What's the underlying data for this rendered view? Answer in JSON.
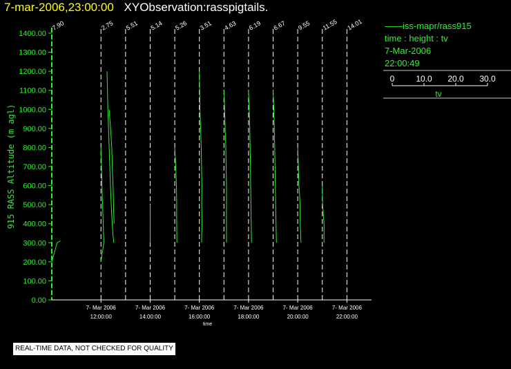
{
  "header": {
    "date_time": "7-mar-2006,23:00:00",
    "observation": "XYObservation:rasspigtails."
  },
  "legend": {
    "series_name": "iss-mapr/rass915",
    "subtitle": "time : height : tv",
    "date": "7-Mar-2006",
    "time": "22:00:49",
    "scale_ticks": [
      "0",
      "10.0",
      "20.0",
      "30.0"
    ],
    "scale_label": "tv"
  },
  "footer": {
    "quality_note": "REAL-TIME DATA, NOT CHECKED FOR QUALITY"
  },
  "colors": {
    "background": "#000000",
    "series": "#33ee33",
    "axis": "#33ee33",
    "title_date": "#ffff00",
    "title_text": "#ffffff",
    "ref_lines": "#ffffff"
  },
  "chart_data": {
    "type": "line",
    "title": "7-mar-2006,23:00:00 XYObservation:rasspigtails.",
    "xlabel": "time",
    "ylabel": "915 RASS Altitude (m agl)",
    "x_ticks": [
      {
        "time": "12:00:00",
        "date": "7- Mar 2006"
      },
      {
        "time": "14:00:00",
        "date": "7- Mar 2006"
      },
      {
        "time": "16:00:00",
        "date": "7- Mar 2006"
      },
      {
        "time": "18:00:00",
        "date": "7- Mar 2006"
      },
      {
        "time": "20:00:00",
        "date": "7- Mar 2006"
      },
      {
        "time": "22:00:00",
        "date": "7- Mar 2006"
      }
    ],
    "xlim": [
      "2006-03-07 10:00",
      "2006-03-07 23:00"
    ],
    "ylim": [
      0,
      1400
    ],
    "y_ticks": [
      "0.00",
      "100.00",
      "200.00",
      "300.00",
      "400.00",
      "500.00",
      "600.00",
      "700.00",
      "800.00",
      "900.00",
      "1000.00",
      "1100.00",
      "1200.00",
      "1300.00",
      "1400.00"
    ],
    "profile_scale": {
      "value_per_hour": 30,
      "units": "tv"
    },
    "reference_lines": [
      {
        "time": "2006-03-07 10:00",
        "label": "7.90"
      },
      {
        "time": "2006-03-07 12:00",
        "label": "2.75"
      },
      {
        "time": "2006-03-07 13:00",
        "label": "5.51"
      },
      {
        "time": "2006-03-07 14:00",
        "label": "5.14"
      },
      {
        "time": "2006-03-07 15:00",
        "label": "5.26"
      },
      {
        "time": "2006-03-07 16:00",
        "label": "3.51"
      },
      {
        "time": "2006-03-07 17:00",
        "label": "4.63"
      },
      {
        "time": "2006-03-07 18:00",
        "label": "6.19"
      },
      {
        "time": "2006-03-07 19:00",
        "label": "6.67"
      },
      {
        "time": "2006-03-07 20:00",
        "label": "9.55"
      },
      {
        "time": "2006-03-07 21:00",
        "label": "11.55"
      },
      {
        "time": "2006-03-07 22:00",
        "label": "14.01"
      }
    ],
    "series": [
      {
        "time": "2006-03-07 10:00",
        "points": [
          [
            0,
            200
          ],
          [
            3.3,
            250
          ],
          [
            6.6,
            300
          ],
          [
            10.5,
            310
          ]
        ]
      },
      {
        "time": "2006-03-07 12:00",
        "points": [
          [
            0,
            800
          ],
          [
            1.2,
            600
          ],
          [
            2.3,
            450
          ],
          [
            3.5,
            300
          ],
          [
            0,
            200
          ]
        ]
      },
      {
        "time": "2006-03-07 12:00",
        "points": [
          [
            7.4,
            1200
          ],
          [
            8.4,
            1000
          ],
          [
            10.0,
            800
          ],
          [
            11.5,
            600
          ],
          [
            13.0,
            450
          ],
          [
            14.5,
            350
          ],
          [
            15.6,
            300
          ]
        ]
      },
      {
        "time": "2006-03-07 12:00",
        "points": [
          [
            10.0,
            1000
          ],
          [
            11.7,
            900
          ],
          [
            13.2,
            800
          ],
          [
            13.8,
            700
          ],
          [
            14.7,
            600
          ],
          [
            15.3,
            500
          ],
          [
            16.0,
            400
          ]
        ]
      },
      {
        "time": "2006-03-07 14:00",
        "points": [
          [
            0,
            500
          ],
          [
            0,
            300
          ]
        ]
      },
      {
        "time": "2006-03-07 15:00",
        "points": [
          [
            0,
            800
          ],
          [
            1.2,
            700
          ],
          [
            2.0,
            600
          ],
          [
            2.4,
            500
          ],
          [
            2.3,
            450
          ],
          [
            2.6,
            300
          ]
        ]
      },
      {
        "time": "2006-03-07 16:00",
        "points": [
          [
            0,
            1200
          ],
          [
            0.8,
            1000
          ],
          [
            1.5,
            900
          ],
          [
            2.3,
            800
          ],
          [
            2.7,
            700
          ],
          [
            3.0,
            600
          ],
          [
            2.9,
            500
          ],
          [
            3.1,
            400
          ],
          [
            2.7,
            300
          ]
        ]
      },
      {
        "time": "2006-03-07 17:00",
        "points": [
          [
            0,
            1100
          ],
          [
            0.8,
            1000
          ],
          [
            1.5,
            900
          ],
          [
            2.3,
            800
          ],
          [
            2.7,
            700
          ],
          [
            3.1,
            600
          ],
          [
            3.1,
            500
          ],
          [
            3.0,
            450
          ],
          [
            3.1,
            300
          ]
        ]
      },
      {
        "time": "2006-03-07 18:00",
        "points": [
          [
            0,
            1100
          ],
          [
            0.8,
            1000
          ],
          [
            1.5,
            900
          ],
          [
            1.9,
            800
          ],
          [
            2.3,
            700
          ],
          [
            2.6,
            600
          ],
          [
            2.9,
            500
          ],
          [
            3.3,
            400
          ],
          [
            3.6,
            300
          ]
        ]
      },
      {
        "time": "2006-03-07 19:00",
        "points": [
          [
            0,
            1100
          ],
          [
            0.8,
            1000
          ],
          [
            1.5,
            900
          ],
          [
            1.9,
            800
          ],
          [
            2.3,
            700
          ],
          [
            2.7,
            600
          ],
          [
            3.1,
            500
          ],
          [
            3.5,
            400
          ],
          [
            4.0,
            300
          ]
        ]
      },
      {
        "time": "2006-03-07 20:00",
        "points": [
          [
            0,
            800
          ],
          [
            0.8,
            700
          ],
          [
            1.5,
            600
          ],
          [
            2.3,
            550
          ],
          [
            2.7,
            500
          ],
          [
            3.1,
            400
          ],
          [
            3.5,
            350
          ],
          [
            4.0,
            300
          ]
        ]
      },
      {
        "time": "2006-03-07 21:00",
        "points": [
          [
            0,
            600
          ],
          [
            0.4,
            500
          ],
          [
            1.2,
            450
          ],
          [
            2.1,
            400
          ],
          [
            2.1,
            300
          ]
        ]
      }
    ]
  }
}
